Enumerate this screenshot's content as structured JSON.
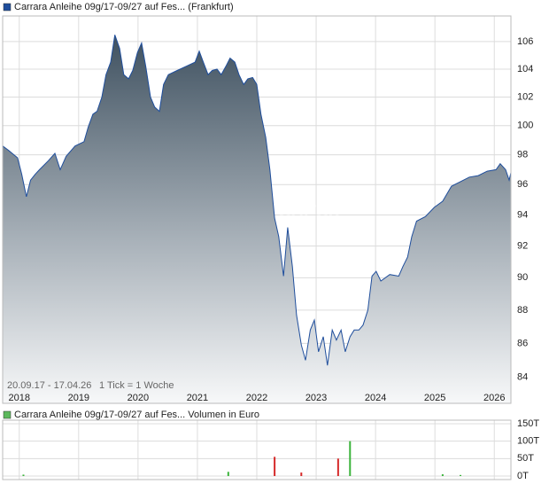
{
  "chart_data": [
    {
      "type": "area",
      "title": "Carrara Anleihe 09g/17-09/27 auf Fes... (Frankfurt)",
      "date_range": "20.09.17 - 17.04.26",
      "tick_info": "1 Tick = 1 Woche",
      "watermark": "CHECK",
      "log_scale": true,
      "grid": true,
      "color": "#1f4e9c",
      "x": [
        2017.72,
        2017.82,
        2017.97,
        2018.04,
        2018.12,
        2018.19,
        2018.27,
        2018.34,
        2018.49,
        2018.6,
        2018.69,
        2018.79,
        2018.94,
        2019.09,
        2019.16,
        2019.24,
        2019.31,
        2019.39,
        2019.46,
        2019.54,
        2019.61,
        2019.69,
        2019.76,
        2019.84,
        2019.91,
        2019.99,
        2020.06,
        2020.13,
        2020.21,
        2020.28,
        2020.36,
        2020.43,
        2020.51,
        2020.66,
        2020.81,
        2020.96,
        2021.03,
        2021.1,
        2021.18,
        2021.25,
        2021.33,
        2021.4,
        2021.48,
        2021.55,
        2021.63,
        2021.7,
        2021.78,
        2021.85,
        2021.93,
        2022.0,
        2022.07,
        2022.15,
        2022.22,
        2022.3,
        2022.37,
        2022.45,
        2022.52,
        2022.6,
        2022.67,
        2022.75,
        2022.82,
        2022.9,
        2022.97,
        2023.04,
        2023.12,
        2023.19,
        2023.27,
        2023.34,
        2023.42,
        2023.49,
        2023.57,
        2023.64,
        2023.72,
        2023.79,
        2023.87,
        2023.94,
        2024.01,
        2024.09,
        2024.24,
        2024.39,
        2024.46,
        2024.54,
        2024.61,
        2024.69,
        2024.84,
        2024.99,
        2025.13,
        2025.28,
        2025.43,
        2025.58,
        2025.73,
        2025.88,
        2026.03,
        2026.1,
        2026.19,
        2026.25,
        2026.28
      ],
      "values": [
        98.6,
        98.3,
        97.8,
        96.7,
        95.2,
        96.3,
        96.7,
        97.0,
        97.6,
        98.1,
        97.0,
        97.9,
        98.6,
        98.9,
        99.9,
        100.8,
        101.0,
        102.0,
        103.6,
        104.5,
        106.5,
        105.5,
        103.6,
        103.3,
        103.9,
        105.2,
        105.9,
        104.2,
        102.0,
        101.3,
        101.0,
        102.9,
        103.6,
        103.9,
        104.2,
        104.5,
        105.3,
        104.5,
        103.6,
        103.9,
        104.0,
        103.6,
        104.2,
        104.8,
        104.5,
        103.6,
        102.9,
        103.3,
        103.4,
        102.9,
        100.8,
        99.2,
        97.0,
        93.8,
        92.6,
        90.1,
        93.2,
        90.7,
        87.7,
        85.9,
        85.0,
        86.8,
        87.4,
        85.5,
        86.4,
        84.7,
        86.8,
        86.2,
        86.8,
        85.5,
        86.4,
        86.8,
        86.8,
        87.1,
        88.0,
        90.1,
        90.4,
        89.8,
        90.2,
        90.1,
        90.7,
        91.3,
        92.6,
        93.6,
        93.9,
        94.5,
        94.9,
        95.9,
        96.2,
        96.5,
        96.6,
        96.9,
        97.0,
        97.4,
        97.0,
        96.3,
        96.8
      ],
      "xlim": [
        2017.72,
        2026.28
      ],
      "xticks": [
        2018,
        2019,
        2020,
        2021,
        2022,
        2023,
        2024,
        2025,
        2026
      ],
      "ylim": [
        82.5,
        107.9
      ],
      "yticks": [
        84,
        86,
        88,
        90,
        92,
        94,
        96,
        98,
        100,
        102,
        104,
        106
      ]
    },
    {
      "type": "bar",
      "title": "Carrara Anleihe 09g/17-09/27 auf Fes... Volumen in Euro",
      "legend_color": "#5cb85c",
      "grid": true,
      "x": [
        2018.07,
        2021.52,
        2022.3,
        2022.75,
        2023.37,
        2023.57,
        2025.13,
        2025.43
      ],
      "values": [
        4000,
        12000,
        55000,
        10000,
        50000,
        100000,
        5000,
        3000
      ],
      "colors": [
        "#3cb43c",
        "#3cb43c",
        "#d62a2a",
        "#d62a2a",
        "#d62a2a",
        "#3cb43c",
        "#3cb43c",
        "#3cb43c"
      ],
      "xlim": [
        2017.72,
        2026.28
      ],
      "xticks": [
        2018,
        2019,
        2020,
        2021,
        2022,
        2023,
        2024,
        2025,
        2026
      ],
      "ylim": [
        0,
        160000
      ],
      "yticks": [
        {
          "value": 0,
          "label": "0T"
        },
        {
          "value": 50000,
          "label": "50T"
        },
        {
          "value": 100000,
          "label": "100T"
        },
        {
          "value": 150000,
          "label": "150T"
        }
      ]
    }
  ]
}
